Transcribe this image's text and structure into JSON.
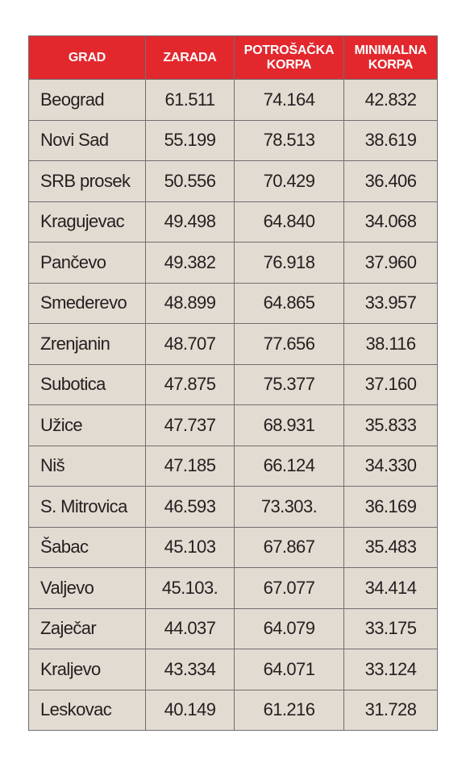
{
  "chart_data": {
    "type": "table",
    "columns": [
      "GRAD",
      "ZARADA",
      "POTROŠAČKA KORPA",
      "MINIMALNA KORPA"
    ],
    "rows": [
      [
        "Beograd",
        "61.511",
        "74.164",
        "42.832"
      ],
      [
        "Novi Sad",
        "55.199",
        "78.513",
        "38.619"
      ],
      [
        "SRB prosek",
        "50.556",
        "70.429",
        "36.406"
      ],
      [
        "Kragujevac",
        "49.498",
        "64.840",
        "34.068"
      ],
      [
        "Pančevo",
        "49.382",
        "76.918",
        "37.960"
      ],
      [
        "Smederevo",
        "48.899",
        "64.865",
        "33.957"
      ],
      [
        "Zrenjanin",
        "48.707",
        "77.656",
        "38.116"
      ],
      [
        "Subotica",
        "47.875",
        "75.377",
        "37.160"
      ],
      [
        "Užice",
        "47.737",
        "68.931",
        "35.833"
      ],
      [
        "Niš",
        "47.185",
        "66.124",
        "34.330"
      ],
      [
        "S. Mitrovica",
        "46.593",
        "73.303.",
        "36.169"
      ],
      [
        "Šabac",
        "45.103",
        "67.867",
        "35.483"
      ],
      [
        "Valjevo",
        "45.103.",
        "67.077",
        "34.414"
      ],
      [
        "Zaječar",
        "44.037",
        "64.079",
        "33.175"
      ],
      [
        "Kraljevo",
        "43.334",
        "64.071",
        "33.124"
      ],
      [
        "Leskovac",
        "40.149",
        "61.216",
        "31.728"
      ]
    ]
  },
  "colors": {
    "header_background": "#e2282d",
    "header_text": "#ffffff",
    "cell_background": "#e2dbd1",
    "cell_text": "#231f20",
    "border": "#6f6f6f"
  }
}
